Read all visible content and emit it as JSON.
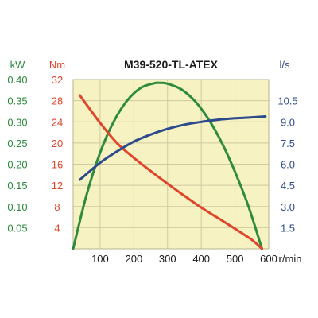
{
  "chart_data": {
    "type": "line",
    "title": "M39-520-TL-ATEX",
    "xlabel": "r/min",
    "x_ticks": [
      "100",
      "200",
      "300",
      "400",
      "500",
      "600"
    ],
    "xlim": [
      20,
      600
    ],
    "axes": {
      "power": {
        "unit": "kW",
        "ticks": [
          "0.40",
          "0.35",
          "0.30",
          "0.25",
          "0.20",
          "0.15",
          "0.10",
          "0.05"
        ],
        "range": [
          0,
          0.4
        ],
        "color": "#2e8b3e"
      },
      "torque": {
        "unit": "Nm",
        "ticks": [
          "32",
          "28",
          "24",
          "20",
          "16",
          "12",
          "8",
          "4"
        ],
        "range": [
          0,
          32
        ],
        "color": "#e0442a"
      },
      "flow": {
        "unit": "l/s",
        "ticks": [
          "10.5",
          "9.0",
          "7.5",
          "6.0",
          "4.5",
          "3.0",
          "1.5"
        ],
        "range": [
          0,
          12
        ],
        "color": "#2c4a8c"
      }
    },
    "series": [
      {
        "axis": "power",
        "color": "#2e8b3e",
        "x": [
          20,
          60,
          100,
          140,
          180,
          220,
          260,
          280,
          300,
          340,
          380,
          420,
          460,
          500,
          540,
          580
        ],
        "y": [
          0.0,
          0.128,
          0.227,
          0.3,
          0.35,
          0.38,
          0.391,
          0.392,
          0.39,
          0.377,
          0.35,
          0.308,
          0.252,
          0.182,
          0.1,
          0.0
        ]
      },
      {
        "axis": "torque",
        "color": "#e0442a",
        "x": [
          40,
          100,
          150,
          200,
          250,
          300,
          350,
          400,
          450,
          500,
          550,
          580
        ],
        "y": [
          29.0,
          23.8,
          20.0,
          17.2,
          14.7,
          12.3,
          10.0,
          7.8,
          5.8,
          3.8,
          1.7,
          0.0
        ]
      },
      {
        "axis": "flow",
        "color": "#2c4a8c",
        "x": [
          40,
          100,
          150,
          200,
          250,
          300,
          350,
          400,
          450,
          500,
          550,
          590
        ],
        "y": [
          4.9,
          6.1,
          6.9,
          7.6,
          8.1,
          8.5,
          8.8,
          9.0,
          9.15,
          9.25,
          9.32,
          9.38
        ]
      }
    ],
    "grid": true
  }
}
